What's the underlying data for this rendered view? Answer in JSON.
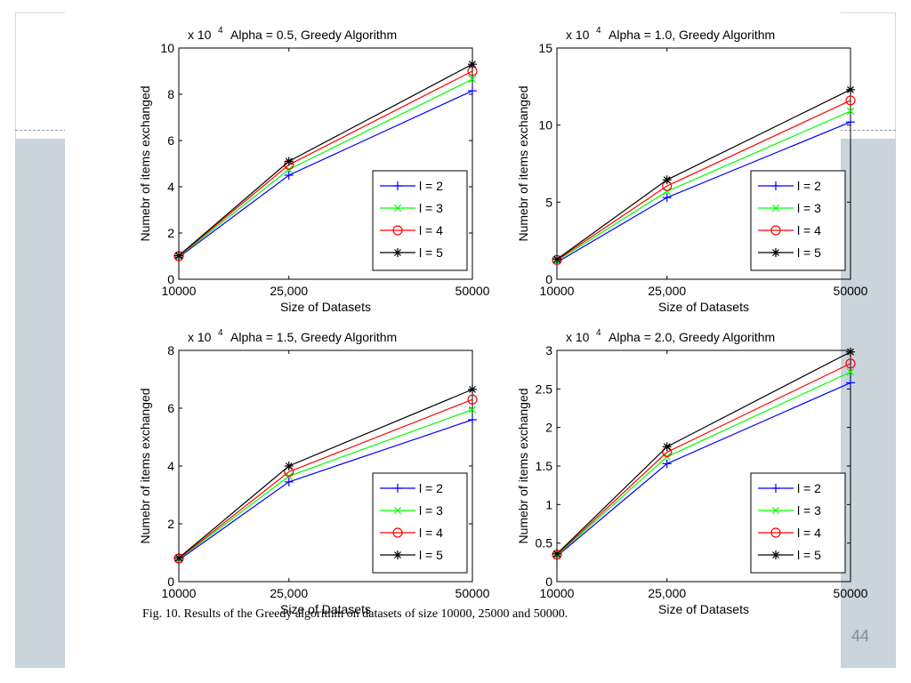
{
  "slide": {
    "number": "44",
    "caption": "Fig. 10.   Results of the Greedy algorithm on datasets of size 10000, 25000 and 50000."
  },
  "legend_labels": [
    "l = 2",
    "l = 3",
    "l = 4",
    "l = 5"
  ],
  "series_colors": [
    "#0000ff",
    "#00ff00",
    "#ff0000",
    "#000000"
  ],
  "series_markers": [
    "plus",
    "x",
    "circle",
    "star"
  ],
  "chart_data": [
    {
      "type": "line",
      "title": "Alpha = 0.5, Greedy Algorithm",
      "exponent_label": "x 10",
      "exponent_power": "4",
      "xlabel": "Size of Datasets",
      "ylabel": "Numebr of items exchanged",
      "x_tick_labels": [
        "10000",
        "25,000",
        "50000"
      ],
      "y_ticks": [
        0,
        2,
        4,
        6,
        8,
        10
      ],
      "ylim": [
        0,
        10
      ],
      "legend_position": "lower-right",
      "grid": false,
      "x": [
        10000,
        25000,
        50000
      ],
      "series": [
        {
          "name": "l = 2",
          "values": [
            0.95,
            4.5,
            8.15
          ]
        },
        {
          "name": "l = 3",
          "values": [
            0.98,
            4.75,
            8.65
          ]
        },
        {
          "name": "l = 4",
          "values": [
            1.0,
            4.95,
            9.0
          ]
        },
        {
          "name": "l = 5",
          "values": [
            1.02,
            5.1,
            9.3
          ]
        }
      ]
    },
    {
      "type": "line",
      "title": "Alpha = 1.0, Greedy Algorithm",
      "exponent_label": "x 10",
      "exponent_power": "4",
      "xlabel": "Size of Datasets",
      "ylabel": "Numebr of items exchanged",
      "x_tick_labels": [
        "10000",
        "25,000",
        "50000"
      ],
      "y_ticks": [
        0,
        5,
        10,
        15
      ],
      "ylim": [
        0,
        15
      ],
      "legend_position": "lower-right",
      "grid": false,
      "x": [
        10000,
        25000,
        50000
      ],
      "series": [
        {
          "name": "l = 2",
          "values": [
            1.1,
            5.3,
            10.2
          ]
        },
        {
          "name": "l = 3",
          "values": [
            1.2,
            5.7,
            10.9
          ]
        },
        {
          "name": "l = 4",
          "values": [
            1.25,
            6.05,
            11.6
          ]
        },
        {
          "name": "l = 5",
          "values": [
            1.3,
            6.45,
            12.3
          ]
        }
      ]
    },
    {
      "type": "line",
      "title": "Alpha = 1.5, Greedy Algorithm",
      "exponent_label": "x 10",
      "exponent_power": "4",
      "xlabel": "Size of Datasets",
      "ylabel": "Numebr of items exchanged",
      "x_tick_labels": [
        "10000",
        "25,000",
        "50000"
      ],
      "y_ticks": [
        0,
        2,
        4,
        6,
        8
      ],
      "ylim": [
        0,
        8
      ],
      "legend_position": "lower-right",
      "grid": false,
      "x": [
        10000,
        25000,
        50000
      ],
      "series": [
        {
          "name": "l = 2",
          "values": [
            0.75,
            3.45,
            5.6
          ]
        },
        {
          "name": "l = 3",
          "values": [
            0.78,
            3.65,
            5.95
          ]
        },
        {
          "name": "l = 4",
          "values": [
            0.8,
            3.8,
            6.3
          ]
        },
        {
          "name": "l = 5",
          "values": [
            0.82,
            4.0,
            6.65
          ]
        }
      ]
    },
    {
      "type": "line",
      "title": "Alpha = 2.0, Greedy Algorithm",
      "exponent_label": "x 10",
      "exponent_power": "4",
      "xlabel": "Size of Datasets",
      "ylabel": "Numebr of items exchanged",
      "x_tick_labels": [
        "10000",
        "25,000",
        "50000"
      ],
      "y_ticks": [
        0,
        0.5,
        1,
        1.5,
        2,
        2.5,
        3
      ],
      "y_tick_labels": [
        "0",
        "0.5",
        "1",
        "1.5",
        "2",
        "2.5",
        "3"
      ],
      "ylim": [
        0,
        3
      ],
      "legend_position": "lower-right",
      "grid": false,
      "x": [
        10000,
        25000,
        50000
      ],
      "series": [
        {
          "name": "l = 2",
          "values": [
            0.33,
            1.53,
            2.58
          ]
        },
        {
          "name": "l = 3",
          "values": [
            0.34,
            1.62,
            2.72
          ]
        },
        {
          "name": "l = 4",
          "values": [
            0.35,
            1.68,
            2.83
          ]
        },
        {
          "name": "l = 5",
          "values": [
            0.36,
            1.75,
            2.98
          ]
        }
      ]
    }
  ]
}
